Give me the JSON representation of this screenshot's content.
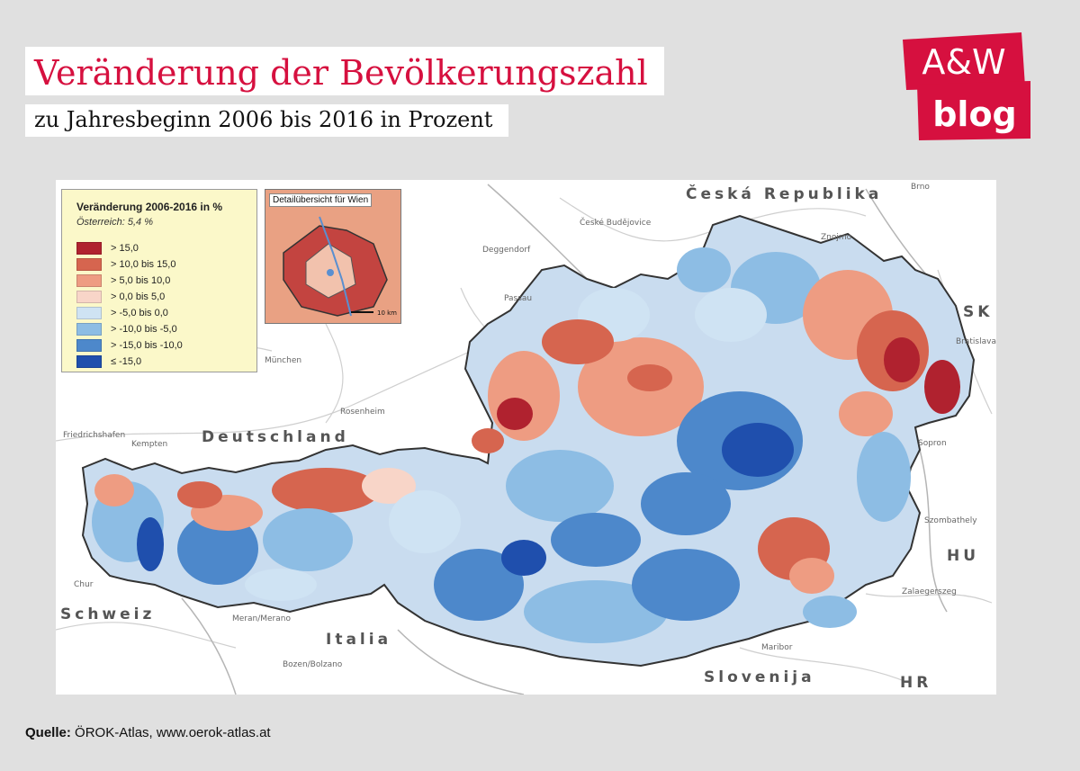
{
  "header": {
    "title": "Veränderung der Bevölkerungszahl",
    "subtitle": "zu Jahresbeginn 2006 bis 2016 in Prozent"
  },
  "logo": {
    "line1": "A&W",
    "line2": "blog",
    "color": "#d6103f"
  },
  "legend": {
    "title": "Veränderung 2006-2016 in %",
    "subtitle": "Österreich: 5,4 %",
    "items": [
      {
        "label": "> 15,0",
        "color": "#b0222f"
      },
      {
        "label": "> 10,0  bis  15,0",
        "color": "#d6654f"
      },
      {
        "label": "> 5,0  bis  10,0",
        "color": "#ee9c82"
      },
      {
        "label": "> 0,0  bis  5,0",
        "color": "#f8d5c8"
      },
      {
        "label": "> -5,0  bis  0,0",
        "color": "#cfe3f3"
      },
      {
        "label": "> -10,0  bis  -5,0",
        "color": "#8dbde4"
      },
      {
        "label": "> -15,0  bis  -10,0",
        "color": "#4d88cb"
      },
      {
        "label": "≤ -15,0",
        "color": "#1f4fad"
      }
    ]
  },
  "inset": {
    "label": "Detailübersicht für Wien",
    "scale": "10 km"
  },
  "map": {
    "countries": {
      "cz": "Česká Republika",
      "de": "Deutschland",
      "ch": "Schweiz",
      "it": "Italia",
      "si": "Slovenija",
      "sk": "SK",
      "hu": "HU",
      "hr": "HR"
    },
    "cities": {
      "brno": "Brno",
      "budejovice": "České Budějovice",
      "deggendorf": "Deggendorf",
      "passau": "Passau",
      "znojmo": "Znojmo",
      "bratislava": "Bratislava",
      "munchen": "München",
      "rosenheim": "Rosenheim",
      "friedrichshafen": "Friedrichshafen",
      "kempten": "Kempten",
      "chur": "Chur",
      "meran": "Meran/Merano",
      "bozen": "Bozen/Bolzano",
      "maribor": "Maribor",
      "szombathely": "Szombathely",
      "zalaegerszeg": "Zalaegerszeg",
      "sopron": "Sopron"
    }
  },
  "source": {
    "label": "Quelle:",
    "text": "ÖROK-Atlas, www.oerok-atlas.at"
  }
}
